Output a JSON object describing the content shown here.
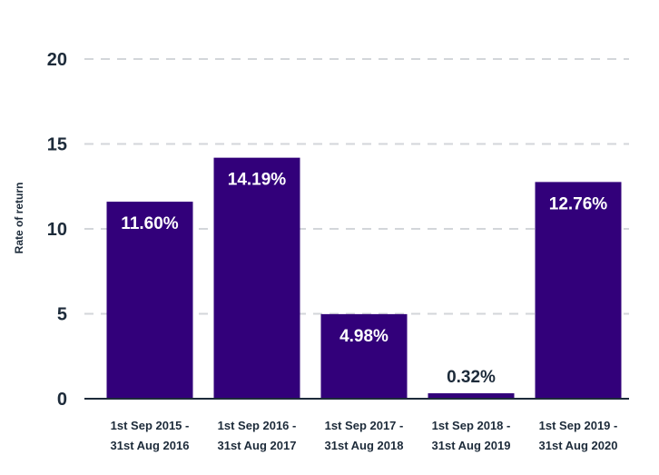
{
  "chart_data": {
    "type": "bar",
    "title": "",
    "xlabel": "",
    "ylabel": "Rate of return",
    "ylim": [
      0,
      20
    ],
    "yticks": [
      0,
      5,
      10,
      15,
      20
    ],
    "grid": true,
    "categories": [
      [
        "1st Sep 2015 -",
        "31st Aug 2016"
      ],
      [
        "1st Sep 2016 -",
        "31st Aug 2017"
      ],
      [
        "1st Sep 2017 -",
        "31st Aug 2018"
      ],
      [
        "1st Sep 2018 -",
        "31st Aug 2019"
      ],
      [
        "1st Sep 2019 -",
        "31st Aug 2020"
      ]
    ],
    "values": [
      11.6,
      14.19,
      4.98,
      0.32,
      12.76
    ],
    "value_labels": [
      "11.60%",
      "14.19%",
      "4.98%",
      "0.32%",
      "12.76%"
    ],
    "colors": {
      "bar": "#32007a",
      "grid": "#d3d6da",
      "axis": "#1d2b3a",
      "label_inside": "#ffffff",
      "label_outside": "#1d2b3a"
    }
  }
}
